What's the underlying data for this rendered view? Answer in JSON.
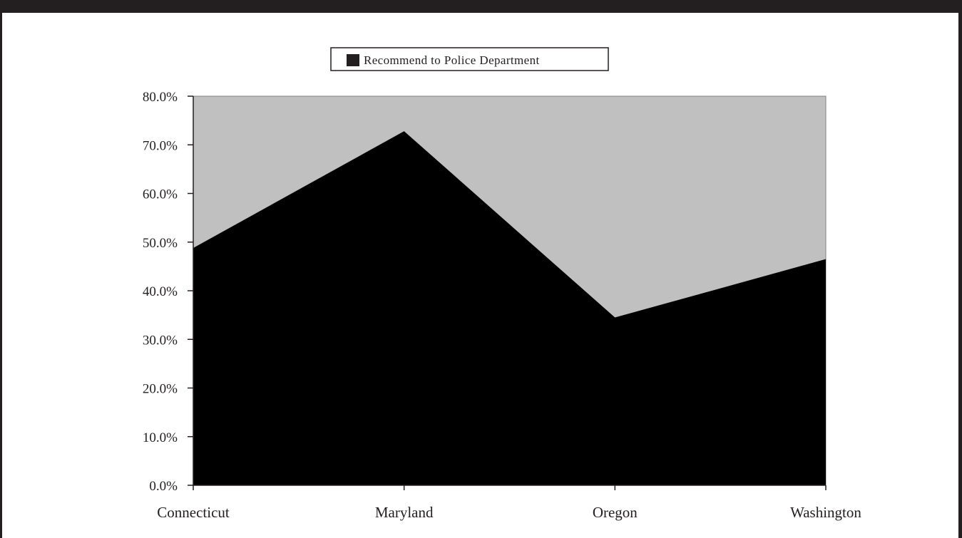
{
  "chart_data": {
    "type": "area",
    "categories": [
      "Connecticut",
      "Maryland",
      "Oregon",
      "Washington"
    ],
    "series": [
      {
        "name": "Recommend to Police Department",
        "values": [
          48.8,
          72.8,
          34.5,
          46.5
        ],
        "color": "#000000"
      }
    ],
    "ylim": [
      0,
      80
    ],
    "yticks": [
      "0.0%",
      "10.0%",
      "20.0%",
      "30.0%",
      "40.0%",
      "50.0%",
      "60.0%",
      "70.0%",
      "80.0%"
    ],
    "plot_background": "#c0c0c0",
    "legend_position": "top-center",
    "grid": false
  }
}
